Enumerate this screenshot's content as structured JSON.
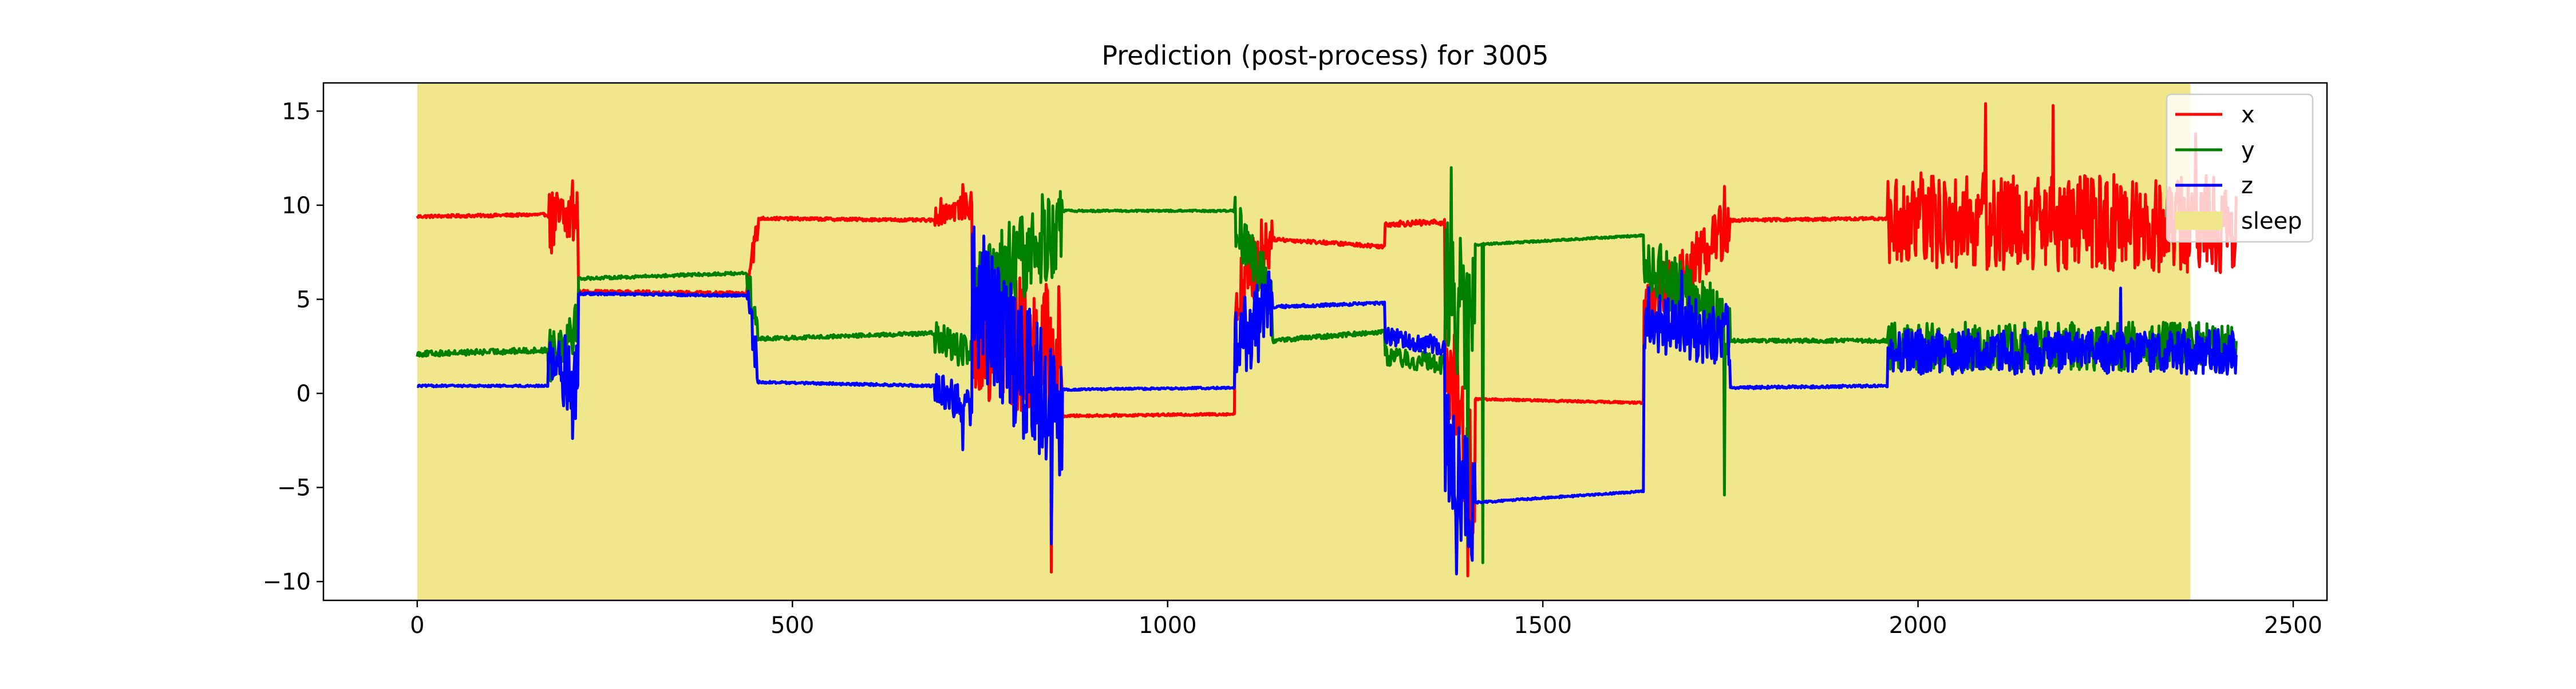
{
  "chart_data": {
    "type": "line",
    "title": "Prediction (post-process) for 3005",
    "xlabel": "",
    "ylabel": "",
    "xlim": [
      -125,
      2545
    ],
    "ylim": [
      -11,
      16.5
    ],
    "x_ticks": [
      0,
      500,
      1000,
      1500,
      2000,
      2500
    ],
    "y_ticks": [
      -10,
      -5,
      0,
      5,
      10,
      15
    ],
    "x_tick_labels": [
      "0",
      "500",
      "1000",
      "1500",
      "2000",
      "2500"
    ],
    "y_tick_labels": [
      "−10",
      "−5",
      "0",
      "5",
      "10",
      "15"
    ],
    "grid": false,
    "legend_position": "top-right",
    "n_samples": 2425,
    "shaded_regions": [
      {
        "name": "sleep",
        "x_start": 0,
        "x_end": 2363,
        "color": "#f0e68c"
      }
    ],
    "series": [
      {
        "name": "x",
        "color": "#ff0000",
        "segments": [
          {
            "x0": 0,
            "x1": 175,
            "y0": 9.4,
            "y1": 9.5,
            "noise": 0.08
          },
          {
            "x0": 175,
            "x1": 215,
            "y0": 9.0,
            "y1": 9.5,
            "noise": 1.8
          },
          {
            "x0": 215,
            "x1": 440,
            "y0": 5.4,
            "y1": 5.3,
            "noise": 0.1
          },
          {
            "x0": 440,
            "x1": 455,
            "y0": 6.5,
            "y1": 8.8,
            "noise": 0.8
          },
          {
            "x0": 455,
            "x1": 690,
            "y0": 9.3,
            "y1": 9.2,
            "noise": 0.08
          },
          {
            "x0": 690,
            "x1": 740,
            "y0": 9.6,
            "y1": 10.0,
            "noise": 0.7
          },
          {
            "x0": 740,
            "x1": 860,
            "y0": 3.0,
            "y1": 2.0,
            "noise": 3.8
          },
          {
            "x0": 860,
            "x1": 1090,
            "y0": -1.2,
            "y1": -1.1,
            "noise": 0.06
          },
          {
            "x0": 1090,
            "x1": 1140,
            "y0": 5.0,
            "y1": 8.5,
            "noise": 2.0
          },
          {
            "x0": 1140,
            "x1": 1290,
            "y0": 8.2,
            "y1": 7.8,
            "noise": 0.1
          },
          {
            "x0": 1290,
            "x1": 1370,
            "y0": 9.0,
            "y1": 9.1,
            "noise": 0.15
          },
          {
            "x0": 1370,
            "x1": 1410,
            "y0": 2.0,
            "y1": -5.0,
            "noise": 3.5
          },
          {
            "x0": 1410,
            "x1": 1635,
            "y0": -0.3,
            "y1": -0.5,
            "noise": 0.05
          },
          {
            "x0": 1635,
            "x1": 1750,
            "y0": 4.5,
            "y1": 9.0,
            "noise": 1.6
          },
          {
            "x0": 1750,
            "x1": 1960,
            "y0": 9.2,
            "y1": 9.3,
            "noise": 0.08
          },
          {
            "x0": 1960,
            "x1": 2425,
            "y0": 9.2,
            "y1": 9.0,
            "noise": 2.6
          }
        ],
        "spikes": [
          [
            207,
            11.3
          ],
          [
            727,
            11.1
          ],
          [
            845,
            -9.5
          ],
          [
            1400,
            -9.7
          ],
          [
            1742,
            11.0
          ],
          [
            2090,
            15.4
          ],
          [
            2180,
            15.3
          ],
          [
            2370,
            13.8
          ],
          [
            2350,
            6.6
          ]
        ]
      },
      {
        "name": "y",
        "color": "#008000",
        "segments": [
          {
            "x0": 0,
            "x1": 175,
            "y0": 2.1,
            "y1": 2.3,
            "noise": 0.15
          },
          {
            "x0": 175,
            "x1": 215,
            "y0": 2.0,
            "y1": 4.0,
            "noise": 1.5
          },
          {
            "x0": 215,
            "x1": 440,
            "y0": 6.1,
            "y1": 6.4,
            "noise": 0.08
          },
          {
            "x0": 440,
            "x1": 455,
            "y0": 6.0,
            "y1": 3.0,
            "noise": 1.0
          },
          {
            "x0": 455,
            "x1": 690,
            "y0": 2.9,
            "y1": 3.2,
            "noise": 0.1
          },
          {
            "x0": 690,
            "x1": 740,
            "y0": 3.0,
            "y1": 2.0,
            "noise": 0.9
          },
          {
            "x0": 740,
            "x1": 860,
            "y0": 5.0,
            "y1": 9.0,
            "noise": 2.5
          },
          {
            "x0": 860,
            "x1": 1090,
            "y0": 9.7,
            "y1": 9.7,
            "noise": 0.05
          },
          {
            "x0": 1090,
            "x1": 1140,
            "y0": 9.0,
            "y1": 5.0,
            "noise": 1.5
          },
          {
            "x0": 1140,
            "x1": 1290,
            "y0": 2.8,
            "y1": 3.3,
            "noise": 0.12
          },
          {
            "x0": 1290,
            "x1": 1370,
            "y0": 2.0,
            "y1": 1.5,
            "noise": 0.5
          },
          {
            "x0": 1370,
            "x1": 1410,
            "y0": 6.0,
            "y1": 3.0,
            "noise": 4.0
          },
          {
            "x0": 1410,
            "x1": 1635,
            "y0": 7.9,
            "y1": 8.4,
            "noise": 0.05
          },
          {
            "x0": 1635,
            "x1": 1750,
            "y0": 7.0,
            "y1": 3.5,
            "noise": 1.6
          },
          {
            "x0": 1750,
            "x1": 1960,
            "y0": 2.8,
            "y1": 2.8,
            "noise": 0.1
          },
          {
            "x0": 1960,
            "x1": 2425,
            "y0": 2.5,
            "y1": 2.5,
            "noise": 1.3
          }
        ],
        "spikes": [
          [
            1378,
            12.0
          ],
          [
            1420,
            -9.0
          ],
          [
            1742,
            -5.4
          ],
          [
            1400,
            -8.0
          ]
        ]
      },
      {
        "name": "z",
        "color": "#0000ff",
        "segments": [
          {
            "x0": 0,
            "x1": 175,
            "y0": 0.4,
            "y1": 0.4,
            "noise": 0.05
          },
          {
            "x0": 175,
            "x1": 215,
            "y0": 2.0,
            "y1": 0.5,
            "noise": 2.0
          },
          {
            "x0": 215,
            "x1": 440,
            "y0": 5.3,
            "y1": 5.2,
            "noise": 0.06
          },
          {
            "x0": 440,
            "x1": 455,
            "y0": 5.0,
            "y1": 1.0,
            "noise": 1.0
          },
          {
            "x0": 455,
            "x1": 690,
            "y0": 0.6,
            "y1": 0.4,
            "noise": 0.06
          },
          {
            "x0": 690,
            "x1": 740,
            "y0": 0.5,
            "y1": -1.0,
            "noise": 1.0
          },
          {
            "x0": 740,
            "x1": 860,
            "y0": 5.5,
            "y1": -2.0,
            "noise": 3.8
          },
          {
            "x0": 860,
            "x1": 1090,
            "y0": 0.2,
            "y1": 0.3,
            "noise": 0.05
          },
          {
            "x0": 1090,
            "x1": 1140,
            "y0": 2.5,
            "y1": 4.5,
            "noise": 2.2
          },
          {
            "x0": 1140,
            "x1": 1290,
            "y0": 4.6,
            "y1": 4.8,
            "noise": 0.08
          },
          {
            "x0": 1290,
            "x1": 1370,
            "y0": 3.0,
            "y1": 2.5,
            "noise": 0.5
          },
          {
            "x0": 1370,
            "x1": 1410,
            "y0": -2.0,
            "y1": -7.0,
            "noise": 3.5
          },
          {
            "x0": 1410,
            "x1": 1635,
            "y0": -5.8,
            "y1": -5.2,
            "noise": 0.05
          },
          {
            "x0": 1635,
            "x1": 1750,
            "y0": 4.0,
            "y1": 3.0,
            "noise": 1.7
          },
          {
            "x0": 1750,
            "x1": 1960,
            "y0": 0.3,
            "y1": 0.4,
            "noise": 0.07
          },
          {
            "x0": 1960,
            "x1": 2425,
            "y0": 2.2,
            "y1": 2.2,
            "noise": 1.2
          }
        ],
        "spikes": [
          [
            207,
            -2.4
          ],
          [
            727,
            -3.0
          ],
          [
            845,
            -8.0
          ],
          [
            1385,
            -9.6
          ],
          [
            1685,
            6.5
          ],
          [
            2270,
            5.6
          ]
        ]
      }
    ]
  },
  "legend": {
    "items": [
      {
        "label": "x",
        "kind": "line",
        "color": "#ff0000"
      },
      {
        "label": "y",
        "kind": "line",
        "color": "#008000"
      },
      {
        "label": "z",
        "kind": "line",
        "color": "#0000ff"
      },
      {
        "label": "sleep",
        "kind": "patch",
        "color": "#f0e68c"
      }
    ]
  }
}
